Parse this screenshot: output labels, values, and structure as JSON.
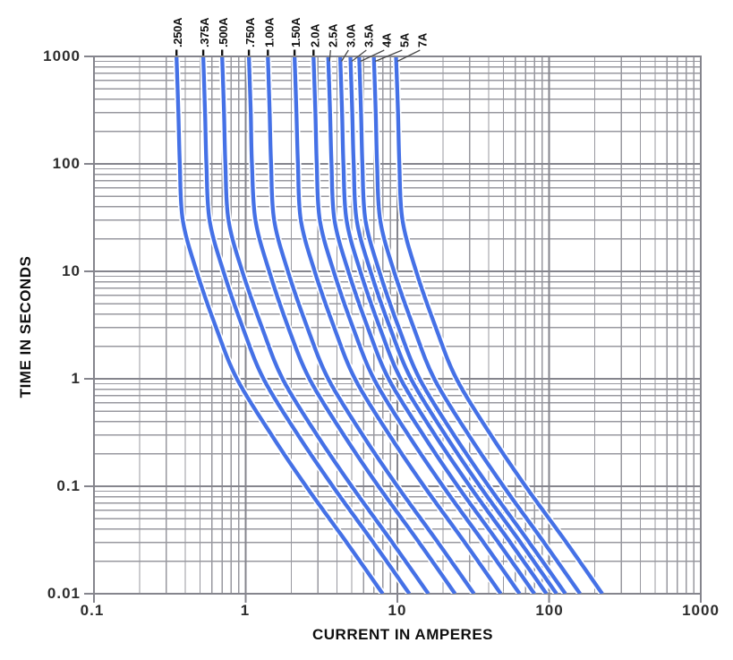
{
  "chart": {
    "title": "",
    "x_axis": {
      "title": "CURRENT IN AMPERES",
      "tick_labels": [
        "0.1",
        "1",
        "10",
        "100",
        "1000"
      ],
      "min": 0.1,
      "max": 1000,
      "scale": "log"
    },
    "y_axis": {
      "title": "TIME IN SECONDS",
      "tick_labels": [
        "1000",
        "100",
        "10",
        "1",
        "0.1",
        "0.01"
      ],
      "min": 0.01,
      "max": 1000,
      "scale": "log"
    },
    "colors": {
      "curve": "#4571E6",
      "curve_casing": "#FFFFFF",
      "grid_major": "#85858D",
      "grid_minor": "#98989F",
      "leader": "#4A4A4A",
      "label_text": "#111111",
      "tick_text": "#2D2D2D",
      "background": "#FFFFFF"
    }
  },
  "chart_data": {
    "type": "line",
    "title": "",
    "xlabel": "CURRENT IN AMPERES",
    "ylabel": "TIME IN SECONDS",
    "x_scale": "log",
    "y_scale": "log",
    "xlim": [
      0.1,
      1000
    ],
    "ylim": [
      0.01,
      1000
    ],
    "grid": "on",
    "legend": "rotated labels above plot with leader lines",
    "times_s": [
      1000,
      300,
      100,
      30,
      10,
      3,
      1,
      0.3,
      0.1,
      0.03,
      0.01
    ],
    "series": [
      {
        "label": ".250A",
        "rating_amps": 0.25,
        "current_amps": [
          0.35,
          0.36,
          0.368,
          0.385,
          0.475,
          0.638,
          0.875,
          1.48,
          2.5,
          4.63,
          8.0
        ]
      },
      {
        "label": ".375A",
        "rating_amps": 0.375,
        "current_amps": [
          0.525,
          0.54,
          0.551,
          0.578,
          0.713,
          0.956,
          1.31,
          2.21,
          3.75,
          6.94,
          12.0
        ]
      },
      {
        "label": ".500A",
        "rating_amps": 0.5,
        "current_amps": [
          0.7,
          0.72,
          0.735,
          0.77,
          0.95,
          1.28,
          1.75,
          2.95,
          5.0,
          9.25,
          16.0
        ]
      },
      {
        "label": ".750A",
        "rating_amps": 0.75,
        "current_amps": [
          1.05,
          1.08,
          1.1,
          1.16,
          1.43,
          1.91,
          2.63,
          4.43,
          7.5,
          13.9,
          24.0
        ]
      },
      {
        "label": "1.00A",
        "rating_amps": 1.0,
        "current_amps": [
          1.4,
          1.44,
          1.47,
          1.54,
          1.9,
          2.55,
          3.5,
          5.9,
          10.0,
          18.5,
          32.0
        ]
      },
      {
        "label": "1.50A",
        "rating_amps": 1.5,
        "current_amps": [
          2.1,
          2.16,
          2.21,
          2.31,
          2.85,
          3.83,
          5.25,
          8.85,
          15.0,
          27.8,
          48.0
        ]
      },
      {
        "label": "2.0A",
        "rating_amps": 2.0,
        "current_amps": [
          2.8,
          2.88,
          2.94,
          3.08,
          3.8,
          5.1,
          7.0,
          11.8,
          20.0,
          37.0,
          64.0
        ]
      },
      {
        "label": "2.5A",
        "rating_amps": 2.5,
        "current_amps": [
          3.5,
          3.6,
          3.68,
          3.85,
          4.75,
          6.38,
          8.75,
          14.8,
          25.0,
          46.3,
          80.0
        ]
      },
      {
        "label": "3.0A",
        "rating_amps": 3.0,
        "current_amps": [
          4.2,
          4.32,
          4.41,
          4.62,
          5.7,
          7.65,
          10.5,
          17.7,
          30.0,
          55.5,
          96.0
        ]
      },
      {
        "label": "3.5A",
        "rating_amps": 3.5,
        "current_amps": [
          4.9,
          5.04,
          5.15,
          5.39,
          6.65,
          8.93,
          12.3,
          20.7,
          35.0,
          64.8,
          112.0
        ]
      },
      {
        "label": "4A",
        "rating_amps": 4.0,
        "current_amps": [
          5.6,
          5.76,
          5.88,
          6.16,
          7.6,
          10.2,
          14.0,
          23.6,
          40.0,
          74.0,
          128.0
        ]
      },
      {
        "label": "5A",
        "rating_amps": 5.0,
        "current_amps": [
          7.0,
          7.2,
          7.35,
          7.7,
          9.5,
          12.8,
          17.5,
          29.5,
          50.0,
          92.5,
          160.0
        ]
      },
      {
        "label": "7A",
        "rating_amps": 7.0,
        "current_amps": [
          9.8,
          10.1,
          10.3,
          10.8,
          13.3,
          17.9,
          24.5,
          41.3,
          70.0,
          130.0,
          224.0
        ]
      }
    ]
  }
}
